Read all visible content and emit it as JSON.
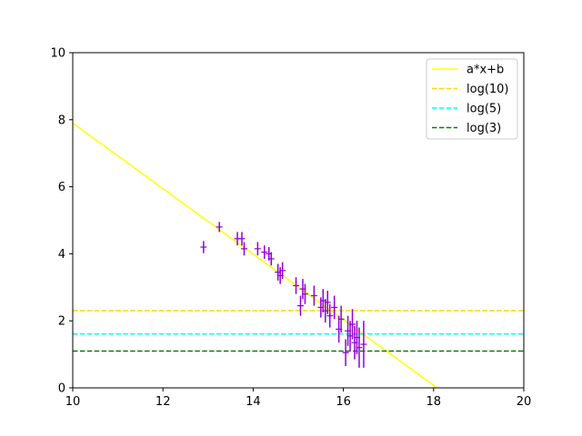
{
  "chart_data": {
    "type": "scatter",
    "xlim": [
      10,
      20
    ],
    "ylim": [
      0,
      10
    ],
    "x_ticks": [
      "10",
      "12",
      "14",
      "16",
      "18",
      "20"
    ],
    "y_ticks": [
      "0",
      "2",
      "4",
      "6",
      "8",
      "10"
    ],
    "grid": false,
    "legend_position": "top-right",
    "legend": [
      {
        "label": "a*x+b",
        "color": "#ffff00",
        "style": "solid"
      },
      {
        "label": "log(10)",
        "color": "#ffd700",
        "style": "dashed"
      },
      {
        "label": "log(5)",
        "color": "#00ffff",
        "style": "dashed"
      },
      {
        "label": "log(3)",
        "color": "#008000",
        "style": "dashed"
      }
    ],
    "fit_line": {
      "a": -0.978,
      "b": 17.68,
      "color": "#ffff00"
    },
    "hlines": [
      {
        "y": 2.3026,
        "color": "#ffd700"
      },
      {
        "y": 1.6094,
        "color": "#00ffff"
      },
      {
        "y": 1.0986,
        "color": "#008000"
      }
    ],
    "marker_color": "#9400d3",
    "points": [
      {
        "x": 12.9,
        "y": 4.2,
        "err": 0.18
      },
      {
        "x": 13.25,
        "y": 4.8,
        "err": 0.15
      },
      {
        "x": 13.65,
        "y": 4.45,
        "err": 0.2
      },
      {
        "x": 13.75,
        "y": 4.45,
        "err": 0.2
      },
      {
        "x": 13.8,
        "y": 4.15,
        "err": 0.2
      },
      {
        "x": 14.1,
        "y": 4.15,
        "err": 0.2
      },
      {
        "x": 14.25,
        "y": 4.05,
        "err": 0.2
      },
      {
        "x": 14.35,
        "y": 4.0,
        "err": 0.2
      },
      {
        "x": 14.4,
        "y": 3.85,
        "err": 0.2
      },
      {
        "x": 14.55,
        "y": 3.45,
        "err": 0.25
      },
      {
        "x": 14.6,
        "y": 3.35,
        "err": 0.25
      },
      {
        "x": 14.65,
        "y": 3.5,
        "err": 0.25
      },
      {
        "x": 14.95,
        "y": 3.05,
        "err": 0.25
      },
      {
        "x": 15.05,
        "y": 2.45,
        "err": 0.3
      },
      {
        "x": 15.1,
        "y": 2.95,
        "err": 0.3
      },
      {
        "x": 15.15,
        "y": 2.8,
        "err": 0.3
      },
      {
        "x": 15.35,
        "y": 2.75,
        "err": 0.3
      },
      {
        "x": 15.5,
        "y": 2.4,
        "err": 0.3
      },
      {
        "x": 15.55,
        "y": 2.6,
        "err": 0.35
      },
      {
        "x": 15.6,
        "y": 2.3,
        "err": 0.35
      },
      {
        "x": 15.65,
        "y": 2.55,
        "err": 0.35
      },
      {
        "x": 15.7,
        "y": 2.15,
        "err": 0.35
      },
      {
        "x": 15.8,
        "y": 2.4,
        "err": 0.35
      },
      {
        "x": 15.9,
        "y": 1.75,
        "err": 0.4
      },
      {
        "x": 15.95,
        "y": 2.05,
        "err": 0.4
      },
      {
        "x": 16.05,
        "y": 1.05,
        "err": 0.4
      },
      {
        "x": 16.1,
        "y": 1.7,
        "err": 0.45
      },
      {
        "x": 16.15,
        "y": 1.55,
        "err": 0.45
      },
      {
        "x": 16.2,
        "y": 1.9,
        "err": 0.45
      },
      {
        "x": 16.25,
        "y": 1.35,
        "err": 0.5
      },
      {
        "x": 16.3,
        "y": 1.5,
        "err": 0.5
      },
      {
        "x": 16.35,
        "y": 1.2,
        "err": 0.6
      },
      {
        "x": 16.45,
        "y": 1.3,
        "err": 0.7
      }
    ]
  }
}
